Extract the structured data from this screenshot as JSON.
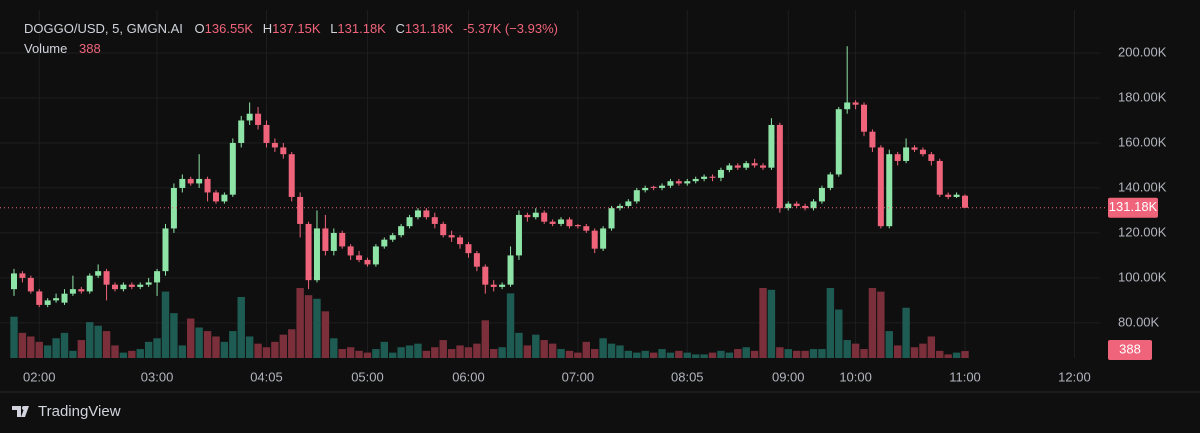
{
  "chart_data": {
    "type": "candlestick",
    "symbol": "DOGGO/USD, 5, GMGN.AI",
    "ohlc_prefixes": {
      "open": "O",
      "high": "H",
      "low": "L",
      "close": "C"
    },
    "ohlc_labels": {
      "open": "136.55K",
      "high": "137.15K",
      "low": "131.18K",
      "close": "131.18K"
    },
    "change_label": "-5.37K (−3.93%)",
    "volume_title": "Volume",
    "branding": "TradingView",
    "up_color": "#8ee4a7",
    "down_color": "#f0647b",
    "volume_up_color": "#1e5b52",
    "volume_down_color": "#7a2f3a",
    "grid": true,
    "ylim": [
      64.4,
      219.1
    ],
    "yticks": [
      {
        "value": 80,
        "label": "80.00K"
      },
      {
        "value": 100,
        "label": "100.00K"
      },
      {
        "value": 120,
        "label": "120.00K"
      },
      {
        "value": 140,
        "label": "140.00K"
      },
      {
        "value": 160,
        "label": "160.00K"
      },
      {
        "value": 180,
        "label": "180.00K"
      },
      {
        "value": 200,
        "label": "200.00K"
      }
    ],
    "categories": [
      null,
      null,
      null,
      "02:00",
      null,
      null,
      null,
      null,
      null,
      null,
      null,
      null,
      null,
      null,
      null,
      null,
      null,
      "03:00",
      null,
      null,
      null,
      null,
      null,
      null,
      null,
      null,
      null,
      null,
      null,
      null,
      "04:05",
      null,
      null,
      null,
      null,
      null,
      null,
      null,
      null,
      null,
      null,
      null,
      "05:00",
      null,
      null,
      null,
      null,
      null,
      null,
      null,
      null,
      null,
      null,
      null,
      "06:00",
      null,
      null,
      null,
      null,
      null,
      null,
      null,
      null,
      null,
      null,
      null,
      null,
      "07:00",
      null,
      null,
      null,
      null,
      null,
      null,
      null,
      null,
      null,
      null,
      null,
      null,
      "08:05",
      null,
      null,
      null,
      null,
      null,
      null,
      null,
      null,
      null,
      null,
      null,
      "09:00",
      null,
      null,
      null,
      null,
      null,
      null,
      null,
      "10:00",
      null,
      null,
      null,
      null,
      null,
      null,
      null,
      null,
      null,
      null,
      null,
      null,
      "11:00",
      null,
      null,
      null,
      null,
      null,
      null,
      null,
      null,
      null,
      null,
      null,
      null,
      "12:00"
    ],
    "open": [
      95,
      102,
      100,
      94,
      88,
      90,
      89,
      93,
      95,
      94,
      101,
      103,
      97,
      95,
      97,
      96,
      97,
      98,
      103,
      122,
      140,
      144,
      142,
      144,
      138,
      134,
      137,
      160,
      170,
      173,
      168,
      160,
      158,
      155,
      136,
      124,
      99,
      122,
      112,
      120,
      114,
      110,
      108,
      106,
      114,
      117,
      119,
      123,
      127,
      130,
      127,
      124,
      119,
      118,
      115,
      111,
      105,
      97,
      96,
      97,
      110,
      128,
      127,
      129,
      125,
      124,
      126,
      123.5,
      123,
      121,
      113,
      122,
      131,
      132,
      134,
      139,
      140.5,
      140,
      141,
      143,
      142,
      143,
      144,
      145,
      144.5,
      148,
      150,
      149,
      151,
      150,
      149,
      168,
      131,
      133,
      132,
      131,
      134,
      140,
      146,
      175,
      178,
      177,
      165,
      158,
      123,
      155,
      152,
      158,
      157,
      155,
      152,
      137,
      136,
      136.55,
      null,
      null,
      null,
      null,
      null,
      null,
      null,
      null,
      null,
      null,
      null,
      null,
      null
    ],
    "high": [
      104,
      103,
      101,
      95,
      91,
      93,
      95,
      101,
      96,
      102,
      106,
      104,
      98,
      98,
      98,
      98,
      100,
      104,
      124,
      142,
      146,
      145,
      155,
      145,
      139,
      138,
      162,
      172,
      178,
      176,
      170,
      162,
      160,
      156,
      138,
      125,
      130,
      128,
      122,
      121,
      115,
      112,
      109,
      115,
      118,
      120,
      124,
      128,
      131,
      131,
      129,
      125,
      121,
      119,
      116,
      112,
      106,
      99,
      98,
      114,
      130,
      129,
      131,
      130,
      126,
      127,
      127,
      124,
      124,
      122,
      123,
      132,
      133,
      135,
      140,
      141,
      141,
      142,
      144,
      144,
      144,
      145,
      146,
      146,
      149,
      151,
      151,
      152,
      153,
      151,
      171,
      169,
      134,
      134,
      133,
      135,
      141,
      147,
      176,
      203,
      179,
      178,
      166,
      159,
      157,
      156,
      162,
      159,
      158,
      156,
      153,
      138,
      138,
      137.15,
      null,
      null,
      null,
      null,
      null,
      null,
      null,
      null,
      null,
      null,
      null,
      null,
      null
    ],
    "low": [
      92,
      98,
      93,
      87,
      87,
      89,
      88,
      92,
      93,
      93,
      100,
      90,
      94,
      94,
      95,
      95,
      96,
      92,
      101,
      120,
      138,
      141,
      140,
      134,
      133,
      133,
      136,
      158,
      168,
      166,
      158,
      156,
      153,
      134,
      118,
      95,
      98,
      110,
      110,
      113,
      108,
      107,
      105,
      105,
      113,
      116,
      118,
      122,
      126,
      126,
      122,
      118,
      116,
      113,
      109,
      103,
      93,
      94,
      95,
      96,
      108,
      125,
      126,
      124,
      123,
      123,
      122,
      122,
      120,
      111,
      112,
      121,
      130,
      131,
      133,
      138,
      139,
      139,
      140,
      141,
      141,
      142,
      143,
      143,
      143,
      147,
      148,
      148,
      149,
      148,
      148,
      129,
      130,
      131,
      130,
      130,
      133,
      139,
      145,
      173,
      175,
      163,
      156,
      122,
      122,
      150,
      151,
      156,
      154,
      150,
      136,
      135,
      135.5,
      131.18,
      null,
      null,
      null,
      null,
      null,
      null,
      null,
      null,
      null,
      null,
      null,
      null,
      null
    ],
    "close": [
      102,
      100,
      94,
      88,
      90,
      91,
      93,
      95,
      94,
      101,
      103,
      97,
      95,
      97,
      96,
      97,
      98,
      103,
      122,
      140,
      144,
      142,
      144,
      138,
      134,
      137,
      160,
      170,
      173,
      168,
      160,
      158,
      155,
      136,
      124,
      99,
      122,
      112,
      120,
      114,
      110,
      108,
      106,
      114,
      117,
      119,
      123,
      127,
      130,
      127,
      124,
      119,
      118,
      115,
      111,
      105,
      97,
      96,
      97,
      110,
      128,
      127,
      129,
      125,
      124,
      126,
      123,
      123,
      121,
      113,
      122,
      131,
      132,
      134,
      139,
      140,
      140,
      141,
      143,
      142,
      143,
      144,
      145,
      144.5,
      148,
      150,
      149,
      151,
      150,
      149,
      168,
      131,
      133,
      132,
      131,
      134,
      140,
      146,
      175,
      178,
      177,
      165,
      158,
      123,
      155,
      152,
      158,
      157,
      155,
      152,
      137,
      136,
      137,
      131.18,
      null,
      null,
      null,
      null,
      null,
      null,
      null,
      null,
      null,
      null,
      null,
      null,
      null
    ],
    "volume": [
      2300,
      1400,
      1200,
      900,
      700,
      1100,
      1400,
      400,
      1000,
      2000,
      1800,
      1500,
      700,
      300,
      400,
      500,
      900,
      1100,
      3700,
      2500,
      700,
      2200,
      1700,
      1500,
      1200,
      900,
      1500,
      3400,
      1200,
      800,
      600,
      900,
      1300,
      1600,
      3900,
      3500,
      3300,
      2600,
      1100,
      500,
      600,
      400,
      300,
      500,
      900,
      300,
      600,
      700,
      800,
      400,
      600,
      1000,
      500,
      700,
      600,
      800,
      2100,
      500,
      600,
      3600,
      1400,
      700,
      1300,
      1000,
      800,
      500,
      400,
      300,
      900,
      500,
      1100,
      800,
      700,
      400,
      300,
      400,
      300,
      500,
      300,
      400,
      300,
      200,
      200,
      300,
      400,
      300,
      500,
      600,
      400,
      3900,
      3800,
      600,
      500,
      400,
      400,
      500,
      500,
      3900,
      2700,
      1000,
      800,
      500,
      3900,
      3700,
      1500,
      700,
      2800,
      600,
      800,
      1200,
      400,
      200,
      300,
      388,
      null,
      null,
      null,
      null,
      null,
      null,
      null,
      null,
      null,
      null,
      null,
      null,
      null
    ]
  }
}
